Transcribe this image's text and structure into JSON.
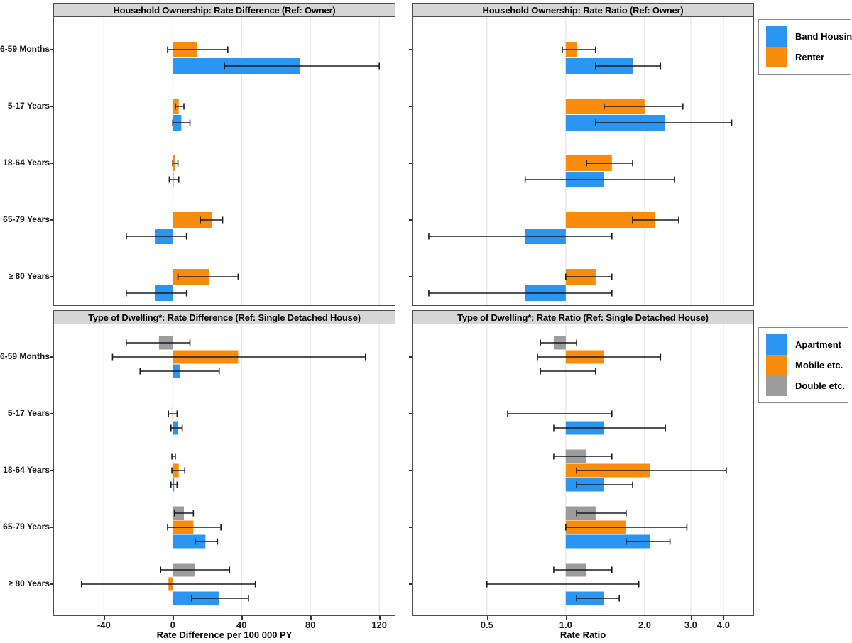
{
  "y_axis": {
    "categories": [
      "6-59 Months",
      "5-17 Years",
      "18-64 Years",
      "65-79 Years",
      "≥ 80 Years"
    ]
  },
  "x_axis_left": {
    "label": "Rate Difference per 100 000 PY",
    "scale": "linear",
    "domain": [
      -69,
      129
    ],
    "baseline": 0,
    "ticks": [
      -40,
      0,
      40,
      80,
      120
    ],
    "tick_labels": [
      "-40",
      "0",
      "40",
      "80",
      "120"
    ]
  },
  "x_axis_right": {
    "label": "Rate Ratio",
    "scale": "log2",
    "domain": [
      0.26,
      5.2
    ],
    "baseline": 1,
    "ticks": [
      0.5,
      1.0,
      2.0,
      3.0,
      4.0
    ],
    "tick_labels": [
      "0.5",
      "1.0",
      "2.0",
      "3.0",
      "4.0"
    ]
  },
  "colors": {
    "blue": "#2b96f2",
    "orange": "#f98b0d",
    "gray": "#9c9c9c",
    "grid": "#e7e7e7",
    "errorbar": "#1a1a1a"
  },
  "legends": {
    "ownership": {
      "items": [
        {
          "label": "Band Housing",
          "color": "#2b96f2"
        },
        {
          "label": "Renter",
          "color": "#f98b0d"
        }
      ]
    },
    "dwelling": {
      "items": [
        {
          "label": "Apartment",
          "color": "#2b96f2"
        },
        {
          "label": "Mobile etc.",
          "color": "#f98b0d"
        },
        {
          "label": "Double etc.",
          "color": "#9c9c9c"
        }
      ]
    }
  },
  "chart_data": [
    {
      "id": "ownership-rate-difference",
      "type": "bar",
      "title": "Household Ownership: Rate Difference (Ref: Owner)",
      "axis": "left",
      "categories": [
        "6-59 Months",
        "5-17 Years",
        "18-64 Years",
        "65-79 Years",
        "≥ 80 Years"
      ],
      "series": [
        {
          "name": "Renter",
          "color": "#f98b0d",
          "values": [
            14,
            3.5,
            1.2,
            23,
            21
          ],
          "ci_low": [
            -3,
            1.5,
            0,
            16,
            3
          ],
          "ci_high": [
            32,
            6.5,
            3,
            29,
            38
          ]
        },
        {
          "name": "Band Housing",
          "color": "#2b96f2",
          "values": [
            74,
            5,
            0.5,
            -10,
            -10
          ],
          "ci_low": [
            30,
            0,
            -2,
            -27,
            -27
          ],
          "ci_high": [
            120,
            10,
            3.5,
            8,
            8
          ]
        }
      ]
    },
    {
      "id": "ownership-rate-ratio",
      "type": "bar",
      "title": "Household Ownership: Rate Ratio (Ref: Owner)",
      "axis": "right",
      "categories": [
        "6-59 Months",
        "5-17 Years",
        "18-64 Years",
        "65-79 Years",
        "≥ 80 Years"
      ],
      "series": [
        {
          "name": "Renter",
          "color": "#f98b0d",
          "values": [
            1.1,
            2.0,
            1.5,
            2.2,
            1.3
          ],
          "ci_low": [
            0.97,
            1.4,
            1.2,
            1.8,
            1.0
          ],
          "ci_high": [
            1.3,
            2.8,
            1.8,
            2.7,
            1.5
          ]
        },
        {
          "name": "Band Housing",
          "color": "#2b96f2",
          "values": [
            1.8,
            2.4,
            1.4,
            0.7,
            0.7
          ],
          "ci_low": [
            1.3,
            1.3,
            0.7,
            0.3,
            0.3
          ],
          "ci_high": [
            2.3,
            4.3,
            2.6,
            1.5,
            1.5
          ]
        }
      ]
    },
    {
      "id": "dwelling-rate-difference",
      "type": "bar",
      "title": "Type of Dwelling*: Rate Difference (Ref: Single Detached House)",
      "axis": "left",
      "categories": [
        "6-59 Months",
        "5-17 Years",
        "18-64 Years",
        "65-79 Years",
        "≥ 80 Years"
      ],
      "series": [
        {
          "name": "Double etc.",
          "color": "#9c9c9c",
          "values": [
            -8,
            null,
            0.2,
            6.5,
            13
          ],
          "ci_low": [
            -27,
            null,
            -0.5,
            1,
            -7
          ],
          "ci_high": [
            10,
            null,
            1.5,
            12,
            33
          ]
        },
        {
          "name": "Mobile etc.",
          "color": "#f98b0d",
          "values": [
            38,
            -0.2,
            3.5,
            12,
            -2.5
          ],
          "ci_low": [
            -35,
            -2.5,
            -0.5,
            -3,
            -53
          ],
          "ci_high": [
            112,
            2.5,
            7,
            28,
            48
          ]
        },
        {
          "name": "Apartment",
          "color": "#2b96f2",
          "values": [
            4,
            3,
            0.8,
            19,
            27
          ],
          "ci_low": [
            -19,
            -1,
            -1,
            13,
            11
          ],
          "ci_high": [
            27,
            5.5,
            2.5,
            26,
            44
          ]
        }
      ]
    },
    {
      "id": "dwelling-rate-ratio",
      "type": "bar",
      "title": "Type of Dwelling*: Rate Ratio (Ref: Single Detached House)",
      "axis": "right",
      "categories": [
        "6-59 Months",
        "5-17 Years",
        "18-64 Years",
        "65-79 Years",
        "≥ 80 Years"
      ],
      "series": [
        {
          "name": "Double etc.",
          "color": "#9c9c9c",
          "values": [
            0.9,
            null,
            1.2,
            1.3,
            1.2
          ],
          "ci_low": [
            0.8,
            null,
            0.9,
            1.1,
            0.9
          ],
          "ci_high": [
            1.1,
            null,
            1.5,
            1.7,
            1.5
          ]
        },
        {
          "name": "Mobile etc.",
          "color": "#f98b0d",
          "values": [
            1.4,
            1.0,
            2.1,
            1.7,
            1.0
          ],
          "ci_low": [
            0.78,
            0.6,
            1.1,
            1.0,
            0.5
          ],
          "ci_high": [
            2.3,
            1.5,
            4.1,
            2.9,
            1.9
          ]
        },
        {
          "name": "Apartment",
          "color": "#2b96f2",
          "values": [
            1.0,
            1.4,
            1.4,
            2.1,
            1.4
          ],
          "ci_low": [
            0.8,
            0.9,
            1.1,
            1.7,
            1.1
          ],
          "ci_high": [
            1.3,
            2.4,
            1.8,
            2.5,
            1.6
          ]
        }
      ]
    }
  ]
}
